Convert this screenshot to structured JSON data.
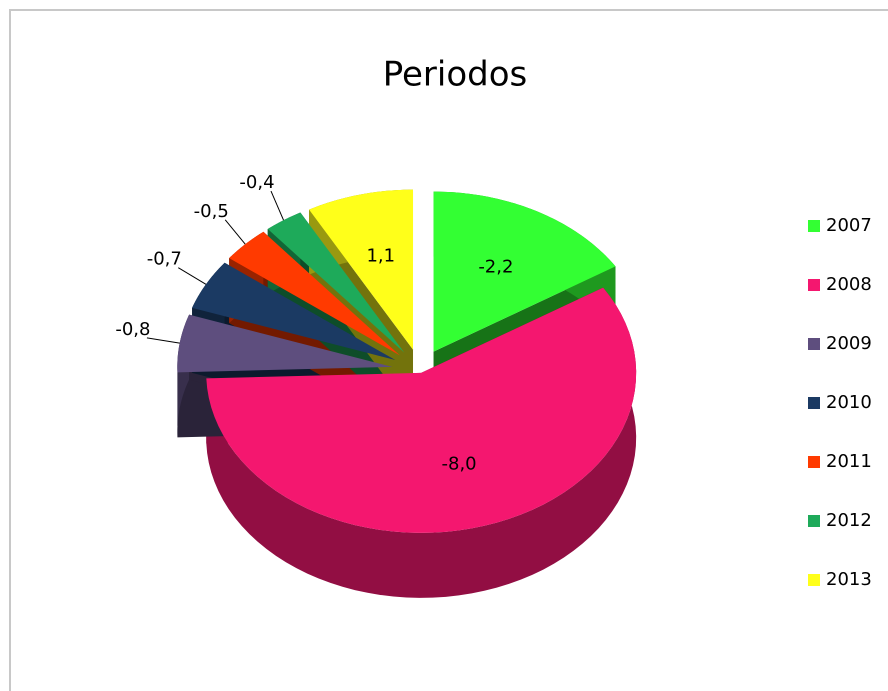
{
  "chart_data": {
    "type": "pie3d",
    "title": "Periodos",
    "categories": [
      "2007",
      "2008",
      "2009",
      "2010",
      "2011",
      "2012",
      "2013"
    ],
    "values": [
      -2.2,
      -8.0,
      -0.8,
      -0.7,
      -0.5,
      -0.4,
      1.1
    ],
    "value_labels": [
      "-2,2",
      "-8,0",
      "-0,8",
      "-0,7",
      "-0,5",
      "-0,4",
      "1,1"
    ],
    "colors": [
      "#33ff33",
      "#f4176f",
      "#5e4e7e",
      "#1b3a63",
      "#ff3a00",
      "#1eaa5a",
      "#ffff1a"
    ],
    "legend": "right"
  }
}
